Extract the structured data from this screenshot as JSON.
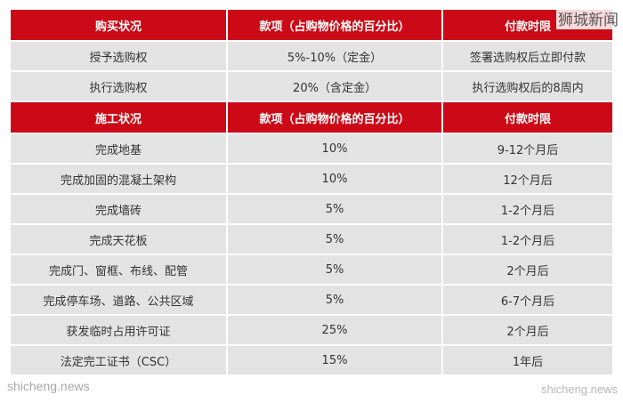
{
  "colors": {
    "header_bg": "#cc0a17",
    "row_bg": "#e3e3e3",
    "header_text": "#ffffff"
  },
  "watermarks": {
    "top_right": "狮城新闻",
    "bottom_left": "shicheng.news",
    "bottom_right": "shicheng.news"
  },
  "section1": {
    "headers": [
      "购买状况",
      "款项（占购物价格的百分比）",
      "付款时限"
    ],
    "rows": [
      [
        "授予选购权",
        "5%-10%（定金）",
        "签署选购权后立即付款"
      ],
      [
        "执行选购权",
        "20%（含定金）",
        "执行选购权后的8周内"
      ]
    ]
  },
  "section2": {
    "headers": [
      "施工状况",
      "款项（占购物价格的百分比）",
      "付款时限"
    ],
    "rows": [
      [
        "完成地基",
        "10%",
        "9-12个月后"
      ],
      [
        "完成加固的混凝土架构",
        "10%",
        "12个月后"
      ],
      [
        "完成墙砖",
        "5%",
        "1-2个月后"
      ],
      [
        "完成天花板",
        "5%",
        "1-2个月后"
      ],
      [
        "完成门、窗框、布线、配管",
        "5%",
        "2个月后"
      ],
      [
        "完成停车场、道路、公共区域",
        "5%",
        "6-7个月后"
      ],
      [
        "获发临时占用许可证",
        "25%",
        "2个月后"
      ],
      [
        "法定完工证书（CSC）",
        "15%",
        "1年后"
      ]
    ]
  }
}
